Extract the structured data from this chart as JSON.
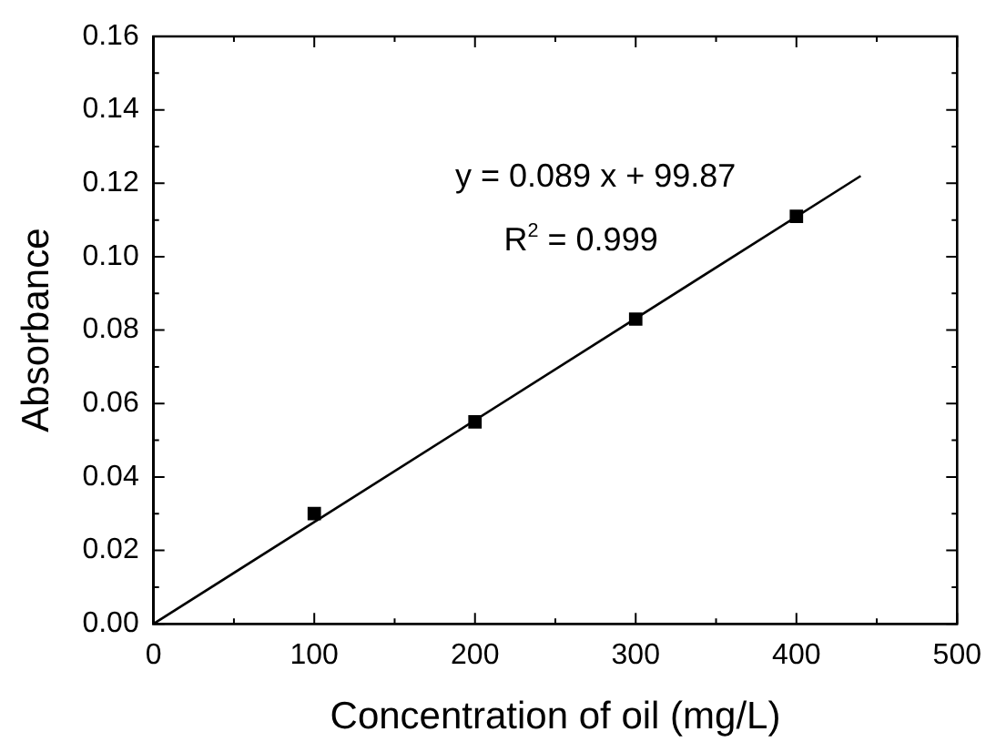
{
  "chart_data": {
    "type": "scatter",
    "xlabel": "Concentration of oil (mg/L)",
    "ylabel": "Absorbance",
    "xlim": [
      0,
      500
    ],
    "ylim": [
      0,
      0.16
    ],
    "xticks": [
      0,
      {
        "value": 50,
        "label": null
      },
      100,
      {
        "value": 150,
        "label": null
      },
      200,
      {
        "value": 250,
        "label": null
      },
      300,
      {
        "value": 350,
        "label": null
      },
      400,
      {
        "value": 450,
        "label": null
      },
      500
    ],
    "yticks": [
      {
        "value": 0,
        "label": "0.00"
      },
      {
        "value": 0.01,
        "label": null
      },
      {
        "value": 0.02,
        "label": "0.02"
      },
      {
        "value": 0.03,
        "label": null
      },
      {
        "value": 0.04,
        "label": "0.04"
      },
      {
        "value": 0.05,
        "label": null
      },
      {
        "value": 0.06,
        "label": "0.06"
      },
      {
        "value": 0.07,
        "label": null
      },
      {
        "value": 0.08,
        "label": "0.08"
      },
      {
        "value": 0.09,
        "label": null
      },
      {
        "value": 0.1,
        "label": "0.10"
      },
      {
        "value": 0.11,
        "label": null
      },
      {
        "value": 0.12,
        "label": "0.12"
      },
      {
        "value": 0.13,
        "label": null
      },
      {
        "value": 0.14,
        "label": "0.14"
      },
      {
        "value": 0.15,
        "label": null
      },
      {
        "value": 0.16,
        "label": "0.16"
      }
    ],
    "annotations": [
      "y = 0.089 x + 99.87",
      "R$^{2}$ = 0.999"
    ],
    "marker": "square",
    "grid": false,
    "legend": false,
    "series": [
      {
        "color": "#000000",
        "x": [
          100,
          200,
          300,
          400
        ],
        "values": [
          0.03,
          0.055,
          0.083,
          0.111
        ]
      },
      {
        "type": "line",
        "color": "#000000",
        "marker": "none",
        "x": [
          0,
          440
        ],
        "values": [
          0,
          0.122
        ]
      }
    ]
  }
}
